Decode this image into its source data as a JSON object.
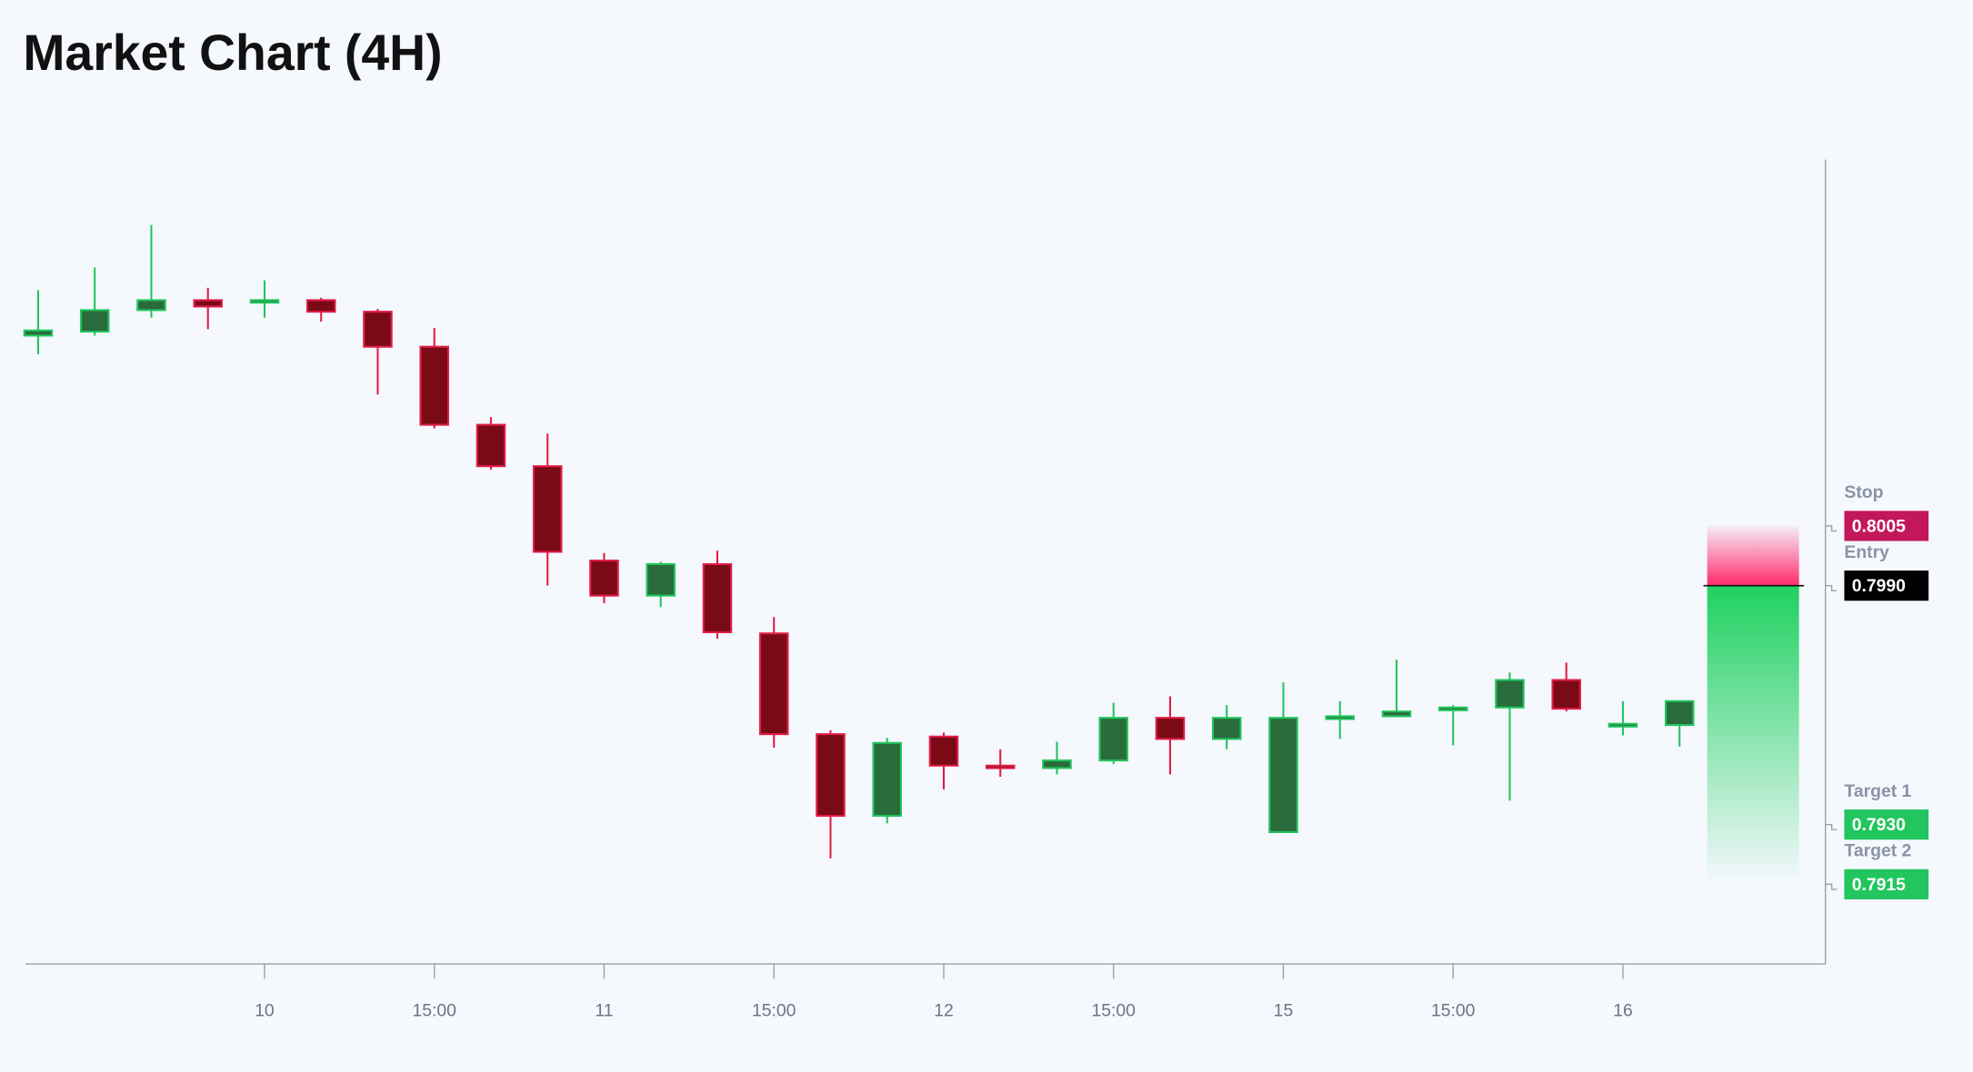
{
  "chart_data": {
    "type": "candlestick",
    "title": "Market Chart (4H)",
    "categories": [
      null,
      null,
      null,
      null,
      "10",
      null,
      null,
      "15:00",
      null,
      null,
      "11",
      null,
      null,
      "15:00",
      null,
      null,
      "12",
      null,
      null,
      "15:00",
      null,
      null,
      "15",
      null,
      null,
      "15:00",
      null,
      null,
      "16",
      null
    ],
    "open": [
      0.80528,
      0.80538,
      0.80592,
      0.80617,
      0.80611,
      0.80617,
      0.80588,
      0.805,
      0.80304,
      0.802,
      0.79963,
      0.79875,
      0.79954,
      0.7978,
      0.79527,
      0.79322,
      0.79521,
      0.79448,
      0.79442,
      0.79461,
      0.79568,
      0.79515,
      0.79281,
      0.79565,
      0.79572,
      0.79587,
      0.79594,
      0.79663,
      0.79546,
      0.7955
    ],
    "high": [
      0.80642,
      0.80699,
      0.80806,
      0.80648,
      0.80667,
      0.80623,
      0.80595,
      0.80547,
      0.80323,
      0.80282,
      0.79982,
      0.7996,
      0.79988,
      0.79821,
      0.79537,
      0.79518,
      0.79531,
      0.79489,
      0.79508,
      0.79606,
      0.79622,
      0.796,
      0.79657,
      0.7961,
      0.79714,
      0.796,
      0.79682,
      0.79707,
      0.7961,
      0.7961
    ],
    "low": [
      0.80481,
      0.80528,
      0.80573,
      0.80544,
      0.80573,
      0.80563,
      0.8038,
      0.80295,
      0.80191,
      0.799,
      0.79856,
      0.79846,
      0.79767,
      0.79493,
      0.79215,
      0.79303,
      0.79388,
      0.7942,
      0.79426,
      0.79452,
      0.79426,
      0.79489,
      0.79281,
      0.79515,
      0.79572,
      0.79499,
      0.7936,
      0.79584,
      0.79524,
      0.79496
    ],
    "close": [
      0.80541,
      0.80592,
      0.80617,
      0.80601,
      0.80617,
      0.80588,
      0.805,
      0.80304,
      0.802,
      0.79985,
      0.79875,
      0.79954,
      0.79783,
      0.79527,
      0.79322,
      0.79505,
      0.79448,
      0.79442,
      0.79461,
      0.79568,
      0.79515,
      0.79568,
      0.79568,
      0.79572,
      0.79584,
      0.79594,
      0.79663,
      0.79591,
      0.79553,
      0.7961
    ],
    "up_color": "#22c55e",
    "up_fill": "#2a6b3c",
    "down_color": "#e11d48",
    "down_fill": "#7a0a16",
    "ylim": [
      0.7895,
      0.8097
    ],
    "levels": [
      {
        "name": "Stop",
        "value": 0.8005,
        "label": "0.8005",
        "color": "#c2185b"
      },
      {
        "name": "Entry",
        "value": 0.799,
        "label": "0.7990",
        "color": "#000000"
      },
      {
        "name": "Target 1",
        "value": 0.793,
        "label": "0.7930",
        "color": "#22c55e"
      },
      {
        "name": "Target 2",
        "value": 0.7915,
        "label": "0.7915",
        "color": "#22c55e"
      }
    ]
  }
}
